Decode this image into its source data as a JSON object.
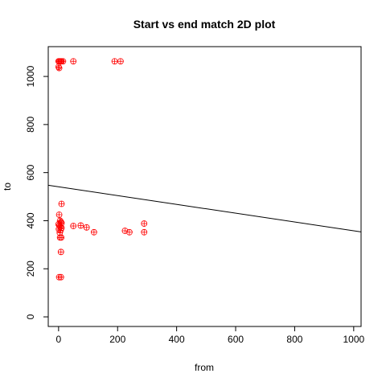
{
  "chart_data": {
    "type": "scatter",
    "title": "Start vs end match 2D plot",
    "x_label": "from",
    "y_label": "to",
    "series": [
      {
        "color": "#ff0000",
        "x": [
          0,
          2,
          5,
          8,
          10,
          15,
          50,
          190,
          210,
          0,
          2,
          10,
          2,
          5,
          8,
          0,
          3,
          6,
          10,
          1,
          7,
          4,
          9,
          5,
          10,
          8,
          2,
          8,
          50,
          75,
          95,
          120,
          225,
          240,
          290,
          290
        ],
        "values": [
          1063,
          1063,
          1063,
          1063,
          1063,
          1063,
          1063,
          1063,
          1063,
          1040,
          1035,
          470,
          425,
          400,
          395,
          385,
          380,
          375,
          370,
          365,
          360,
          350,
          330,
          330,
          390,
          270,
          165,
          165,
          378,
          380,
          372,
          352,
          358,
          352,
          388,
          352
        ]
      }
    ],
    "fit_line": {
      "intercept": 541,
      "slope": -0.183
    },
    "xlim": [
      -35,
      1025
    ],
    "ylim": [
      -40,
      1124
    ],
    "xticks": [
      0,
      200,
      400,
      600,
      800,
      1000
    ],
    "yticks": [
      0,
      200,
      400,
      600,
      800,
      1000
    ]
  }
}
